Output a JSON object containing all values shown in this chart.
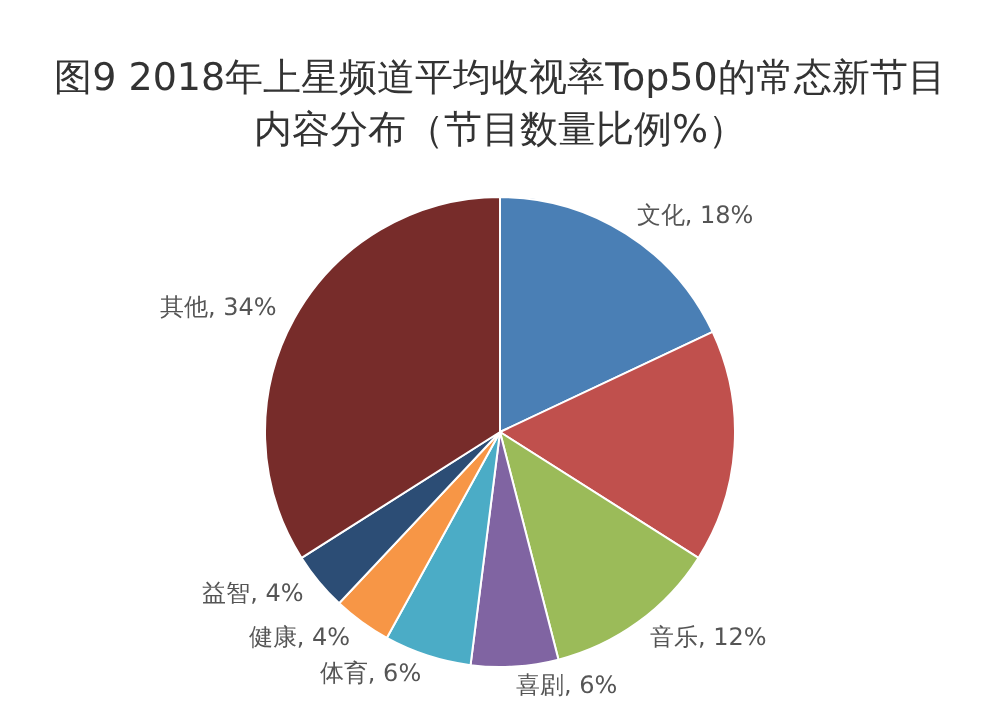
{
  "chart_data": {
    "type": "pie",
    "title": "图9 2018年上星频道平均收视率Top50的常态新节目内容分布（节目数量比例%）",
    "categories": [
      "文化",
      null,
      "音乐",
      "喜剧",
      "体育",
      "健康",
      "益智",
      "其他"
    ],
    "values": [
      18,
      16,
      12,
      6,
      6,
      4,
      4,
      34
    ],
    "value_labels": [
      "18%",
      null,
      "12%",
      "6%",
      "6%",
      "4%",
      "4%",
      "34%"
    ],
    "colors": [
      "#4a7fb5",
      "#c0504d",
      "#9bbb59",
      "#8064a2",
      "#4bacc6",
      "#f79646",
      "#2c4d75",
      "#772c2a"
    ],
    "legend": false
  }
}
